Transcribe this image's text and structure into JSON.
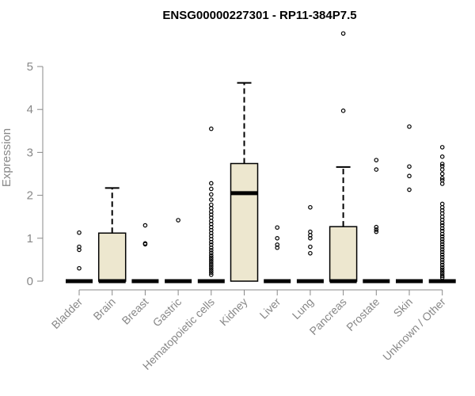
{
  "chart_data": {
    "type": "boxplot",
    "title": "ENSG00000227301 - RP11-384P7.5",
    "ylabel": "Expression",
    "xlabel": "",
    "ylim": [
      0,
      5.5
    ],
    "yticks": [
      0,
      1,
      2,
      3,
      4,
      5
    ],
    "colors": {
      "box_fill": "#ede7cf",
      "axis": "#888888",
      "stroke": "#000000"
    },
    "categories": [
      "Bladder",
      "Brain",
      "Breast",
      "Gastric",
      "Hematopoietic cells",
      "Kidney",
      "Liver",
      "Lung",
      "Pancreas",
      "Prostate",
      "Skin",
      "Unknown / Other"
    ],
    "boxes": [
      {
        "category": "Bladder",
        "q1": 0,
        "median": 0,
        "q3": 0,
        "whisker_low": 0,
        "whisker_high": 0,
        "outliers": [
          1.13,
          0.8,
          0.73,
          0.3
        ]
      },
      {
        "category": "Brain",
        "q1": 0,
        "median": 0,
        "q3": 1.12,
        "whisker_low": 0,
        "whisker_high": 2.17,
        "outliers": []
      },
      {
        "category": "Breast",
        "q1": 0,
        "median": 0,
        "q3": 0,
        "whisker_low": 0,
        "whisker_high": 0,
        "outliers": [
          1.3,
          0.88,
          0.86
        ]
      },
      {
        "category": "Gastric",
        "q1": 0,
        "median": 0,
        "q3": 0,
        "whisker_low": 0,
        "whisker_high": 0,
        "outliers": [
          1.42
        ]
      },
      {
        "category": "Hematopoietic cells",
        "q1": 0,
        "median": 0,
        "q3": 0,
        "whisker_low": 0,
        "whisker_high": 0,
        "outliers": [
          3.55,
          2.28,
          2.15,
          2.02,
          1.9,
          1.78,
          1.7,
          1.62,
          1.55,
          1.48,
          1.4,
          1.33,
          1.26,
          1.19,
          1.12,
          1.05,
          0.98,
          0.91,
          0.85,
          0.78,
          0.72,
          0.66,
          0.6,
          0.55,
          0.5,
          0.45,
          0.4,
          0.35,
          0.3,
          0.25,
          0.2,
          0.15
        ]
      },
      {
        "category": "Kidney",
        "q1": 0,
        "median": 2.05,
        "q3": 2.74,
        "whisker_low": 0,
        "whisker_high": 4.62,
        "outliers": []
      },
      {
        "category": "Liver",
        "q1": 0,
        "median": 0,
        "q3": 0,
        "whisker_low": 0,
        "whisker_high": 0,
        "outliers": [
          1.25,
          1.0,
          0.85,
          0.78
        ]
      },
      {
        "category": "Lung",
        "q1": 0,
        "median": 0,
        "q3": 0,
        "whisker_low": 0,
        "whisker_high": 0,
        "outliers": [
          1.72,
          1.15,
          1.07,
          1.0,
          0.8,
          0.65
        ]
      },
      {
        "category": "Pancreas",
        "q1": 0,
        "median": 0,
        "q3": 1.27,
        "whisker_low": 0,
        "whisker_high": 2.66,
        "outliers": [
          5.77,
          3.97
        ]
      },
      {
        "category": "Prostate",
        "q1": 0,
        "median": 0,
        "q3": 0,
        "whisker_low": 0,
        "whisker_high": 0,
        "outliers": [
          2.82,
          2.6,
          1.26,
          1.2,
          1.15
        ]
      },
      {
        "category": "Skin",
        "q1": 0,
        "median": 0,
        "q3": 0,
        "whisker_low": 0,
        "whisker_high": 0,
        "outliers": [
          3.6,
          2.67,
          2.45,
          2.13
        ]
      },
      {
        "category": "Unknown / Other",
        "q1": 0,
        "median": 0,
        "q3": 0,
        "whisker_low": 0,
        "whisker_high": 0,
        "outliers": [
          3.12,
          2.9,
          2.73,
          2.68,
          2.6,
          2.5,
          2.4,
          2.35,
          2.27,
          1.8,
          1.72,
          1.65,
          1.58,
          1.5,
          1.43,
          1.36,
          1.3,
          1.23,
          1.17,
          1.1,
          1.04,
          0.98,
          0.92,
          0.86,
          0.8,
          0.74,
          0.68,
          0.62,
          0.56,
          0.5,
          0.44,
          0.38,
          0.32,
          0.27,
          0.22,
          0.17,
          0.12,
          0.08
        ]
      }
    ]
  }
}
